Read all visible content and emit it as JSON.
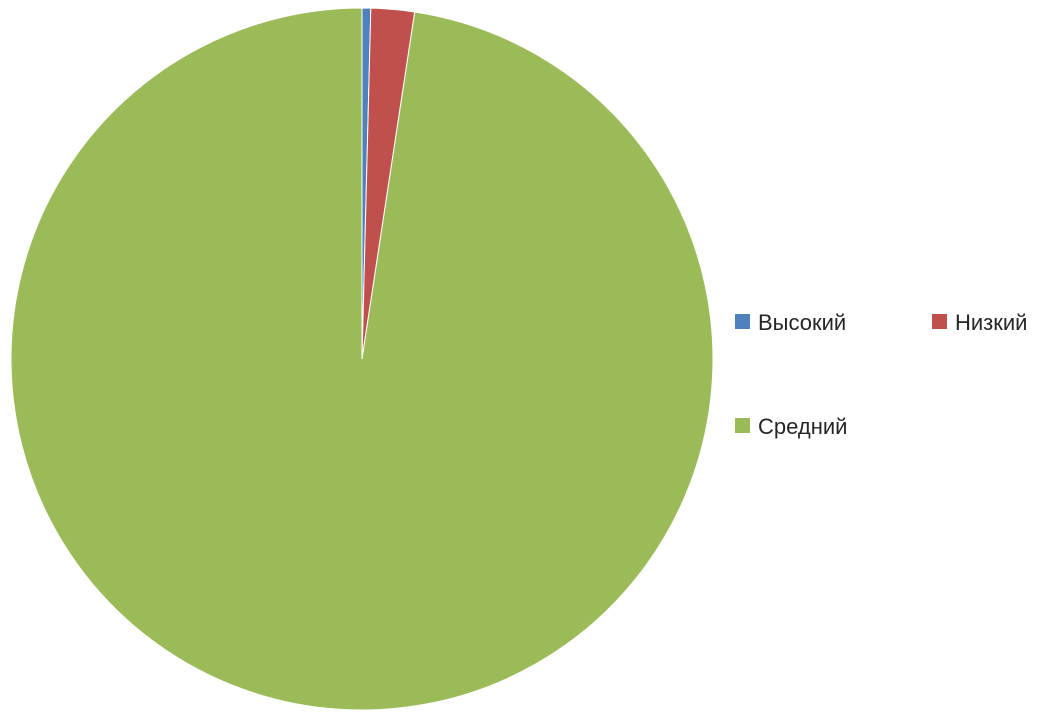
{
  "chart_data": {
    "type": "pie",
    "title": "",
    "start_angle_deg": 90,
    "direction": "clockwise",
    "legend_position": "right",
    "slices": [
      {
        "label": "Высокий",
        "value": 0.4,
        "color": "#4F81BD"
      },
      {
        "label": "Низкий",
        "value": 2.0,
        "color": "#C0504D"
      },
      {
        "label": "Средний",
        "value": 97.6,
        "color": "#9BBB59"
      }
    ]
  }
}
